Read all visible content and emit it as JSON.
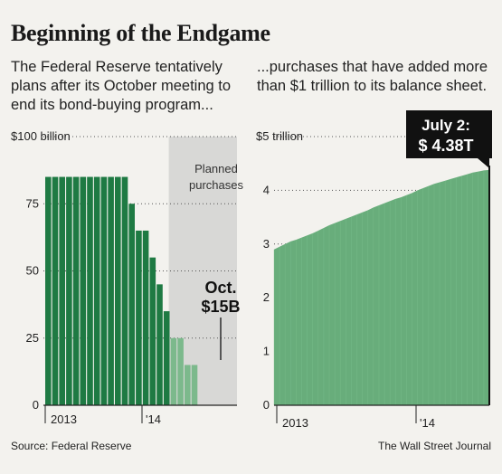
{
  "title": "Beginning of the Endgame",
  "subtitle_left": "The Federal Reserve tentatively plans after its October meeting to end its bond-buying program...",
  "subtitle_right": "...purchases that have added more than $1 trillion to its balance sheet.",
  "source": "Source: Federal Reserve",
  "publisher": "The Wall Street Journal",
  "chart_data": [
    {
      "type": "bar",
      "ylim": [
        0,
        100
      ],
      "yticks": [
        0,
        25,
        50,
        75,
        100
      ],
      "ytick_labels": [
        "0",
        "25",
        "50",
        "75",
        "$100 billion"
      ],
      "xtick_labels": [
        "2013",
        "'14"
      ],
      "values": [
        85,
        85,
        85,
        85,
        85,
        85,
        85,
        85,
        85,
        85,
        85,
        85,
        75,
        65,
        65,
        55,
        45,
        35,
        25,
        25,
        15,
        15
      ],
      "planned_from_index": 18,
      "planned_label": "Planned purchases",
      "annotation": {
        "label": "Oct.",
        "value": "$15B"
      },
      "colors": {
        "actual": "#1e7a43",
        "planned": "#7cb98c",
        "shade": "#d8d8d6"
      }
    },
    {
      "type": "area",
      "ylim": [
        0,
        5
      ],
      "yticks": [
        0,
        1,
        2,
        3,
        4,
        5
      ],
      "ytick_labels": [
        "0",
        "1",
        "2",
        "3",
        "4",
        "$5 trillion"
      ],
      "xtick_labels": [
        "2013",
        "'14"
      ],
      "values": [
        2.9,
        2.95,
        3.0,
        3.05,
        3.08,
        3.12,
        3.16,
        3.2,
        3.25,
        3.3,
        3.35,
        3.39,
        3.43,
        3.47,
        3.51,
        3.55,
        3.59,
        3.63,
        3.68,
        3.72,
        3.76,
        3.8,
        3.84,
        3.87,
        3.91,
        3.95,
        4.0,
        4.04,
        4.08,
        4.12,
        4.15,
        4.18,
        4.21,
        4.24,
        4.27,
        4.3,
        4.33,
        4.35,
        4.37,
        4.38
      ],
      "annotation": {
        "label": "July 2:",
        "value": "$ 4.38T"
      },
      "colors": {
        "fill": "#68ad7b",
        "line": "#7cc08e"
      }
    }
  ]
}
